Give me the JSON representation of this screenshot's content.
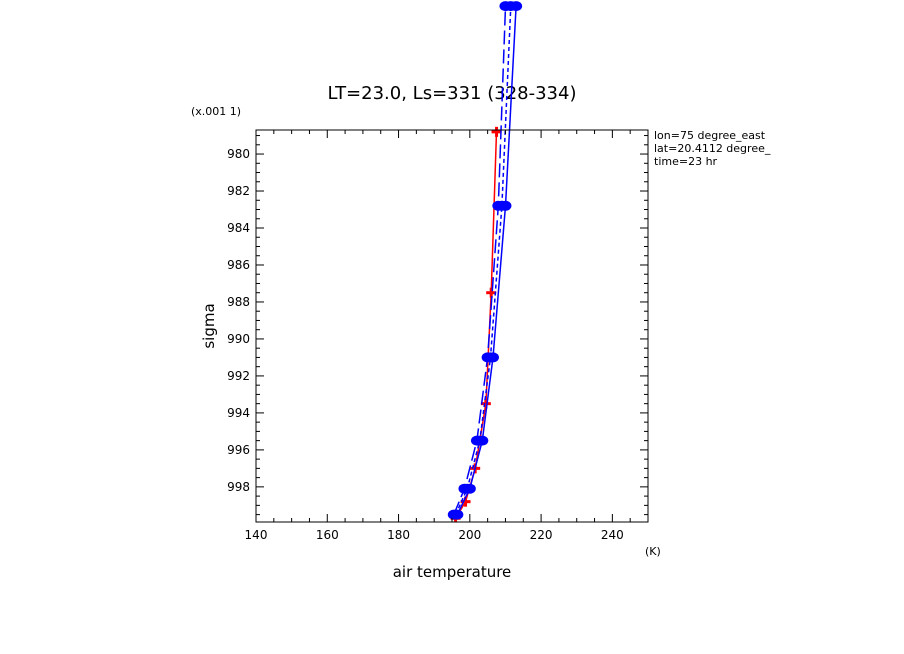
{
  "chart_data": {
    "type": "line",
    "title": "LT=23.0, Ls=331 (328-334)",
    "xlabel": "air temperature",
    "xunits": "(K)",
    "ylabel": "sigma",
    "yscale_note": "(x.001 1)",
    "xlim": [
      140,
      250
    ],
    "ylim_x1000": [
      999.9,
      978.7
    ],
    "yaxis_inverted": true,
    "x_ticks": [
      "140",
      "160",
      "180",
      "200",
      "220",
      "240"
    ],
    "x_tick_values": [
      140,
      160,
      180,
      200,
      220,
      240
    ],
    "y_ticks": [
      "980",
      "982",
      "984",
      "986",
      "988",
      "990",
      "992",
      "994",
      "996",
      "998"
    ],
    "y_tick_values": [
      980,
      982,
      984,
      986,
      988,
      990,
      992,
      994,
      996,
      998
    ],
    "info_lines": [
      "lon=75 degree_east",
      "lat=20.4112 degree_",
      "time=23 hr"
    ],
    "grid": false,
    "series": [
      {
        "color": "#ff0000",
        "dash": "solid",
        "marker": "cross",
        "points": [
          {
            "x": 196.0,
            "y": 999.7
          },
          {
            "x": 198.8,
            "y": 998.8
          },
          {
            "x": 201.5,
            "y": 997.0
          },
          {
            "x": 204.5,
            "y": 993.5
          },
          {
            "x": 206.0,
            "y": 987.5
          },
          {
            "x": 207.5,
            "y": 978.8
          }
        ]
      },
      {
        "color": "#0000ff",
        "dash": "solid",
        "marker": "dot",
        "points": [
          {
            "x": 196.5,
            "y": 999.5
          },
          {
            "x": 200.0,
            "y": 998.1
          },
          {
            "x": 203.5,
            "y": 995.5
          },
          {
            "x": 206.5,
            "y": 991.0
          },
          {
            "x": 210.0,
            "y": 982.8
          },
          {
            "x": 213.0,
            "y": 972.0
          }
        ]
      },
      {
        "color": "#0000ff",
        "dash": "long",
        "marker": "dot",
        "points": [
          {
            "x": 195.5,
            "y": 999.5
          },
          {
            "x": 198.5,
            "y": 998.1
          },
          {
            "x": 202.0,
            "y": 995.5
          },
          {
            "x": 205.0,
            "y": 991.0
          },
          {
            "x": 208.0,
            "y": 982.8
          },
          {
            "x": 210.0,
            "y": 972.0
          }
        ]
      },
      {
        "color": "#0000ff",
        "dash": "short",
        "marker": "dot",
        "points": [
          {
            "x": 196.0,
            "y": 999.5
          },
          {
            "x": 199.3,
            "y": 998.1
          },
          {
            "x": 202.8,
            "y": 995.5
          },
          {
            "x": 205.8,
            "y": 991.0
          },
          {
            "x": 209.0,
            "y": 982.8
          },
          {
            "x": 211.5,
            "y": 972.0
          }
        ]
      }
    ]
  }
}
